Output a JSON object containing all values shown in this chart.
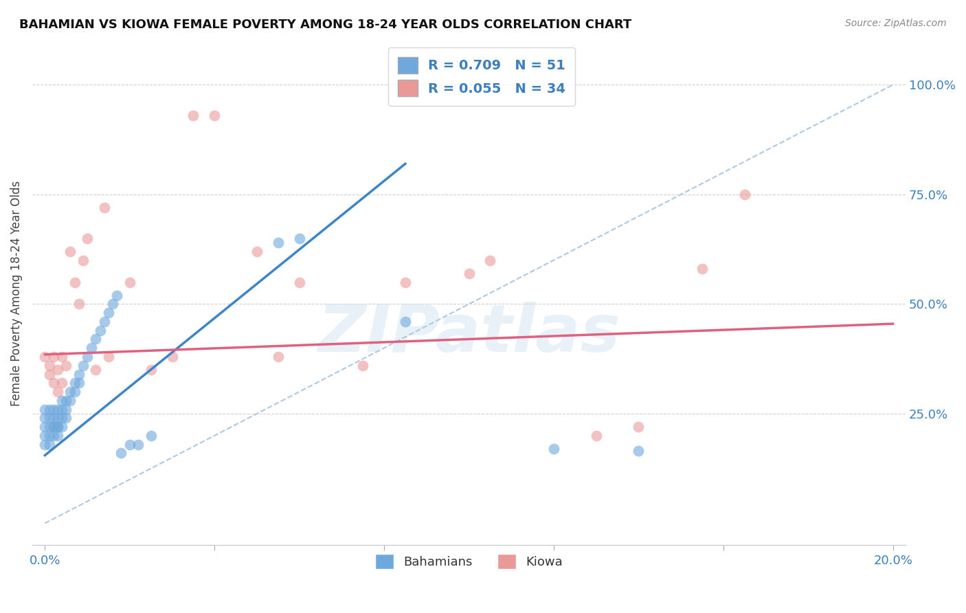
{
  "title": "BAHAMIAN VS KIOWA FEMALE POVERTY AMONG 18-24 YEAR OLDS CORRELATION CHART",
  "source": "Source: ZipAtlas.com",
  "ylabel": "Female Poverty Among 18-24 Year Olds",
  "blue_R": 0.709,
  "blue_N": 51,
  "pink_R": 0.055,
  "pink_N": 34,
  "blue_color": "#6fa8dc",
  "pink_color": "#ea9999",
  "blue_line_color": "#3d85c8",
  "pink_line_color": "#e06080",
  "ref_line_color": "#b0c8e0",
  "blue_line": [
    [
      0.0,
      0.155
    ],
    [
      0.085,
      0.82
    ]
  ],
  "pink_line": [
    [
      0.0,
      0.385
    ],
    [
      0.2,
      0.455
    ]
  ],
  "blue_x": [
    0.0,
    0.0,
    0.0,
    0.0,
    0.0,
    0.001,
    0.001,
    0.001,
    0.001,
    0.001,
    0.002,
    0.002,
    0.002,
    0.002,
    0.002,
    0.003,
    0.003,
    0.003,
    0.003,
    0.003,
    0.004,
    0.004,
    0.004,
    0.004,
    0.005,
    0.005,
    0.005,
    0.006,
    0.006,
    0.007,
    0.007,
    0.008,
    0.008,
    0.009,
    0.01,
    0.011,
    0.012,
    0.013,
    0.014,
    0.015,
    0.016,
    0.017,
    0.018,
    0.02,
    0.022,
    0.025,
    0.055,
    0.06,
    0.085,
    0.12,
    0.14
  ],
  "blue_y": [
    0.22,
    0.24,
    0.26,
    0.2,
    0.18,
    0.22,
    0.24,
    0.26,
    0.2,
    0.18,
    0.22,
    0.24,
    0.26,
    0.2,
    0.22,
    0.22,
    0.24,
    0.26,
    0.2,
    0.22,
    0.24,
    0.26,
    0.28,
    0.22,
    0.24,
    0.26,
    0.28,
    0.3,
    0.28,
    0.32,
    0.3,
    0.34,
    0.32,
    0.36,
    0.38,
    0.4,
    0.42,
    0.44,
    0.46,
    0.48,
    0.5,
    0.52,
    0.16,
    0.18,
    0.18,
    0.2,
    0.64,
    0.65,
    0.46,
    0.17,
    0.165
  ],
  "pink_x": [
    0.0,
    0.001,
    0.001,
    0.002,
    0.002,
    0.003,
    0.003,
    0.004,
    0.004,
    0.005,
    0.006,
    0.007,
    0.008,
    0.009,
    0.01,
    0.012,
    0.014,
    0.015,
    0.02,
    0.025,
    0.03,
    0.035,
    0.04,
    0.05,
    0.055,
    0.06,
    0.075,
    0.085,
    0.1,
    0.105,
    0.13,
    0.14,
    0.155,
    0.165
  ],
  "pink_y": [
    0.38,
    0.36,
    0.34,
    0.38,
    0.32,
    0.3,
    0.35,
    0.38,
    0.32,
    0.36,
    0.62,
    0.55,
    0.5,
    0.6,
    0.65,
    0.35,
    0.72,
    0.38,
    0.55,
    0.35,
    0.38,
    0.93,
    0.93,
    0.62,
    0.38,
    0.55,
    0.36,
    0.55,
    0.57,
    0.6,
    0.2,
    0.22,
    0.58,
    0.75
  ]
}
